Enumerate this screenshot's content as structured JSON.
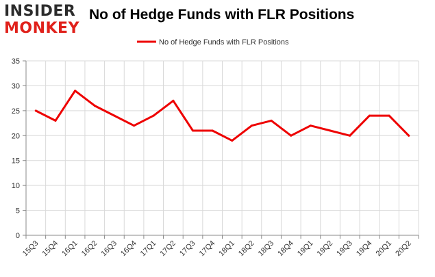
{
  "logo": {
    "line1": "INSIDER",
    "line2": "MONKEY"
  },
  "chart_data": {
    "type": "line",
    "title": "No of Hedge Funds with FLR Positions",
    "categories": [
      "15Q3",
      "15Q4",
      "16Q1",
      "16Q2",
      "16Q3",
      "16Q4",
      "17Q1",
      "17Q2",
      "17Q3",
      "17Q4",
      "18Q1",
      "18Q2",
      "18Q3",
      "18Q4",
      "19Q1",
      "19Q2",
      "19Q3",
      "19Q4",
      "20Q1",
      "20Q2"
    ],
    "series": [
      {
        "name": "No of Hedge Funds with FLR Positions",
        "values": [
          25,
          23,
          29,
          26,
          24,
          22,
          24,
          27,
          21,
          21,
          19,
          22,
          23,
          20,
          22,
          21,
          20,
          24,
          24,
          20
        ]
      }
    ],
    "ylim": [
      0,
      35
    ],
    "yticks": [
      0,
      5,
      10,
      15,
      20,
      25,
      30,
      35
    ],
    "grid": true,
    "legend": "top-center",
    "color": "#ee0000"
  }
}
